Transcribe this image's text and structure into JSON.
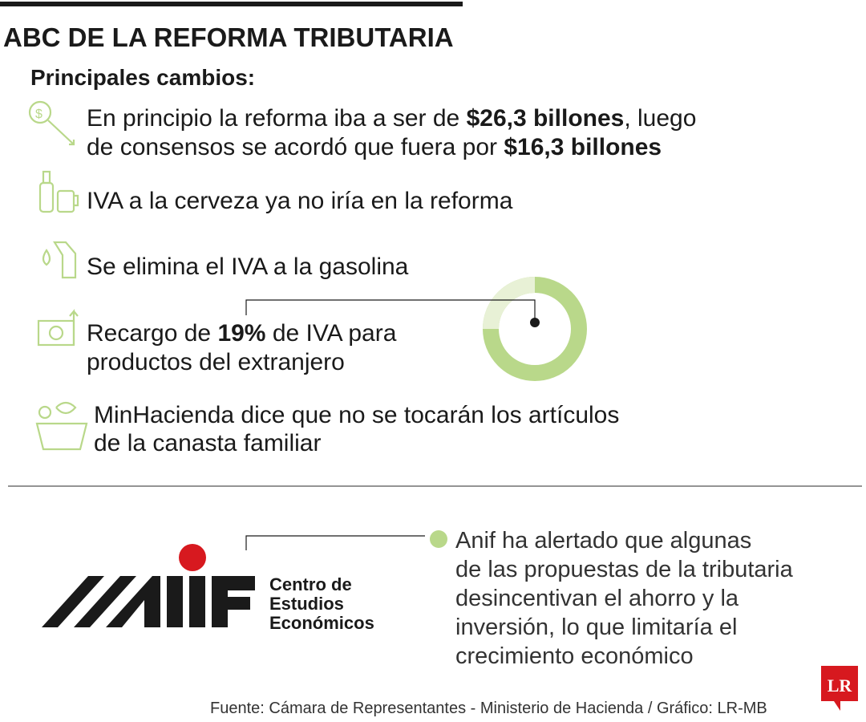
{
  "header": {
    "title": "ABC DE LA REFORMA TRIBUTARIA",
    "subtitle": "Principales cambios:"
  },
  "items": [
    {
      "lines": [
        [
          "En principio la reforma iba a ser de ",
          "$26,3 billones",
          ", luego"
        ],
        [
          "de consensos se acordó que fuera por ",
          "$16,3 billones"
        ]
      ]
    },
    {
      "lines": [
        [
          "IVA a la cerveza ya no iría en la reforma"
        ]
      ]
    },
    {
      "lines": [
        [
          "Se elimina el IVA a la gasolina"
        ]
      ]
    },
    {
      "lines": [
        [
          "Recargo de ",
          "19%",
          " de IVA para"
        ],
        [
          "productos del extranjero"
        ]
      ]
    },
    {
      "lines": [
        [
          "MinHacienda dice que no se tocarán los artículos"
        ],
        [
          "de la canasta familiar"
        ]
      ]
    }
  ],
  "anif": {
    "logo_lines": [
      "Centro de",
      "Estudios",
      "Económicos"
    ],
    "quote_lines": [
      "Anif ha alertado que algunas",
      "de las propuestas de la tributaria",
      "desincentivan el ahorro y la",
      "inversión, lo que limitaría el",
      "crecimiento económico"
    ]
  },
  "footer": {
    "source": "Fuente: Cámara de Representantes - Ministerio de Hacienda / Gráfico: LR-MB",
    "brand": "LR"
  }
}
